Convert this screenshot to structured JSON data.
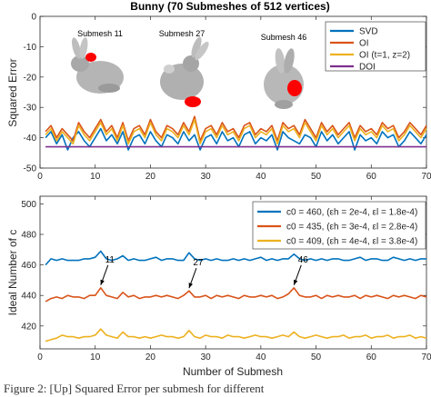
{
  "figure": {
    "caption": "Figure 2: [Up] Squared Error per submesh for different"
  },
  "chart_data": [
    {
      "type": "line",
      "title": "Bunny (70 Submeshes of 512 vertices)",
      "xlabel": "",
      "ylabel": "Squared  Error",
      "xlim": [
        0,
        70
      ],
      "ylim": [
        -50,
        0
      ],
      "xticks": [
        0,
        10,
        20,
        30,
        40,
        50,
        60,
        70
      ],
      "yticks": [
        0,
        -10,
        -20,
        -30,
        -40,
        -50
      ],
      "legend_position": "top-right",
      "x": [
        1,
        2,
        3,
        4,
        5,
        6,
        7,
        8,
        9,
        10,
        11,
        12,
        13,
        14,
        15,
        16,
        17,
        18,
        19,
        20,
        21,
        22,
        23,
        24,
        25,
        26,
        27,
        28,
        29,
        30,
        31,
        32,
        33,
        34,
        35,
        36,
        37,
        38,
        39,
        40,
        41,
        42,
        43,
        44,
        45,
        46,
        47,
        48,
        49,
        50,
        51,
        52,
        53,
        54,
        55,
        56,
        57,
        58,
        59,
        60,
        61,
        62,
        63,
        64,
        65,
        66,
        67,
        68,
        69,
        70
      ],
      "series": [
        {
          "name": "SVD",
          "color": "#0072BD",
          "values": [
            -40,
            -38,
            -42,
            -39,
            -44,
            -40,
            -38,
            -41,
            -43,
            -40,
            -37,
            -41,
            -39,
            -42,
            -38,
            -44,
            -40,
            -39,
            -42,
            -38,
            -41,
            -43,
            -39,
            -40,
            -42,
            -38,
            -41,
            -39,
            -44,
            -40,
            -39,
            -42,
            -38,
            -41,
            -40,
            -43,
            -39,
            -38,
            -42,
            -40,
            -41,
            -39,
            -44,
            -38,
            -40,
            -41,
            -42,
            -39,
            -40,
            -43,
            -38,
            -41,
            -39,
            -42,
            -40,
            -38,
            -44,
            -39,
            -41,
            -40,
            -42,
            -38,
            -40,
            -39,
            -43,
            -41,
            -38,
            -40,
            -42,
            -39
          ]
        },
        {
          "name": "OI",
          "color": "#D95319",
          "values": [
            -38,
            -36,
            -40,
            -37,
            -39,
            -41,
            -35,
            -38,
            -40,
            -37,
            -34,
            -38,
            -36,
            -40,
            -35,
            -41,
            -37,
            -36,
            -39,
            -34,
            -38,
            -40,
            -36,
            -37,
            -39,
            -35,
            -38,
            -33,
            -41,
            -37,
            -36,
            -39,
            -35,
            -38,
            -37,
            -40,
            -36,
            -35,
            -39,
            -37,
            -38,
            -36,
            -41,
            -35,
            -37,
            -36,
            -39,
            -34,
            -37,
            -40,
            -35,
            -38,
            -36,
            -39,
            -37,
            -35,
            -40,
            -36,
            -38,
            -37,
            -39,
            -35,
            -37,
            -36,
            -40,
            -38,
            -35,
            -37,
            -39,
            -36
          ]
        },
        {
          "name": "OI (t=1, z=2)",
          "color": "#EDB120",
          "values": [
            -39,
            -37,
            -41,
            -38,
            -40,
            -42,
            -36,
            -39,
            -41,
            -38,
            -35,
            -39,
            -37,
            -41,
            -36,
            -42,
            -38,
            -37,
            -40,
            -35,
            -39,
            -41,
            -37,
            -38,
            -40,
            -36,
            -39,
            -34,
            -42,
            -38,
            -37,
            -40,
            -36,
            -39,
            -38,
            -41,
            -37,
            -36,
            -40,
            -38,
            -39,
            -37,
            -42,
            -36,
            -38,
            -37,
            -40,
            -35,
            -38,
            -41,
            -36,
            -39,
            -37,
            -40,
            -38,
            -36,
            -41,
            -37,
            -39,
            -38,
            -40,
            -36,
            -38,
            -37,
            -41,
            -39,
            -36,
            -38,
            -40,
            -37
          ]
        },
        {
          "name": "DOI",
          "color": "#7E2F8E",
          "values": [
            -43,
            -43,
            -43,
            -43,
            -43,
            -43,
            -43,
            -43,
            -43,
            -43,
            -43,
            -43,
            -43,
            -43,
            -43,
            -43,
            -43,
            -43,
            -43,
            -43,
            -43,
            -43,
            -43,
            -43,
            -43,
            -43,
            -43,
            -43,
            -43,
            -43,
            -43,
            -43,
            -43,
            -43,
            -43,
            -43,
            -43,
            -43,
            -43,
            -43,
            -43,
            -43,
            -43,
            -43,
            -43,
            -43,
            -43,
            -43,
            -43,
            -43,
            -43,
            -43,
            -43,
            -43,
            -43,
            -43,
            -43,
            -43,
            -43,
            -43,
            -43,
            -43,
            -43,
            -43,
            -43,
            -43,
            -43,
            -43,
            -43,
            -43
          ]
        }
      ],
      "insets": [
        {
          "label": "Submesh 11",
          "x": 11
        },
        {
          "label": "Submesh 27",
          "x": 27
        },
        {
          "label": "Submesh 46",
          "x": 46
        }
      ]
    },
    {
      "type": "line",
      "title": "",
      "xlabel": "Number of Submesh",
      "ylabel": "Ideal Number of c",
      "xlim": [
        0,
        70
      ],
      "ylim": [
        405,
        505
      ],
      "xticks": [
        0,
        10,
        20,
        30,
        40,
        50,
        60,
        70
      ],
      "yticks": [
        420,
        440,
        460,
        480,
        500
      ],
      "legend_position": "top-right",
      "x": [
        1,
        2,
        3,
        4,
        5,
        6,
        7,
        8,
        9,
        10,
        11,
        12,
        13,
        14,
        15,
        16,
        17,
        18,
        19,
        20,
        21,
        22,
        23,
        24,
        25,
        26,
        27,
        28,
        29,
        30,
        31,
        32,
        33,
        34,
        35,
        36,
        37,
        38,
        39,
        40,
        41,
        42,
        43,
        44,
        45,
        46,
        47,
        48,
        49,
        50,
        51,
        52,
        53,
        54,
        55,
        56,
        57,
        58,
        59,
        60,
        61,
        62,
        63,
        64,
        65,
        66,
        67,
        68,
        69,
        70
      ],
      "series": [
        {
          "name": "c0 = 460, (εh = 2e-4, εl = 1.8e-4)",
          "color": "#0072BD",
          "values": [
            460,
            464,
            463,
            464,
            463,
            463,
            463,
            464,
            464,
            465,
            469,
            464,
            463,
            464,
            466,
            463,
            464,
            463,
            463,
            464,
            465,
            463,
            464,
            464,
            463,
            463,
            468,
            464,
            463,
            464,
            463,
            464,
            463,
            463,
            464,
            463,
            464,
            463,
            464,
            465,
            463,
            464,
            463,
            464,
            464,
            467,
            464,
            463,
            464,
            463,
            464,
            463,
            464,
            464,
            463,
            463,
            464,
            465,
            463,
            464,
            464,
            463,
            463,
            465,
            464,
            463,
            464,
            463,
            464,
            464
          ]
        },
        {
          "name": "c0 = 435, (εh = 3e-4, εl = 2.8e-4)",
          "color": "#D95319",
          "values": [
            436,
            438,
            439,
            438,
            440,
            439,
            439,
            438,
            440,
            440,
            445,
            440,
            439,
            438,
            442,
            439,
            440,
            438,
            439,
            439,
            440,
            439,
            440,
            439,
            438,
            440,
            443,
            439,
            439,
            440,
            438,
            440,
            439,
            440,
            439,
            438,
            440,
            439,
            439,
            440,
            439,
            440,
            438,
            439,
            441,
            445,
            440,
            439,
            439,
            440,
            438,
            440,
            439,
            440,
            439,
            439,
            440,
            438,
            440,
            439,
            440,
            439,
            438,
            440,
            439,
            440,
            439,
            438,
            440,
            439
          ]
        },
        {
          "name": "c0 = 409, (εh = 4e-4, εl = 3.8e-4)",
          "color": "#EDB120",
          "values": [
            410,
            411,
            412,
            414,
            413,
            413,
            412,
            413,
            413,
            414,
            418,
            414,
            413,
            412,
            416,
            413,
            413,
            412,
            413,
            412,
            413,
            414,
            413,
            413,
            412,
            413,
            417,
            413,
            412,
            414,
            413,
            413,
            412,
            414,
            413,
            413,
            412,
            413,
            414,
            413,
            413,
            412,
            413,
            414,
            413,
            416,
            413,
            412,
            413,
            414,
            413,
            412,
            413,
            413,
            414,
            412,
            413,
            413,
            414,
            412,
            413,
            413,
            414,
            412,
            413,
            413,
            414,
            412,
            413,
            412
          ]
        }
      ],
      "annotations": [
        {
          "text": "11",
          "x": 11
        },
        {
          "text": "27",
          "x": 27
        },
        {
          "text": "46",
          "x": 46
        }
      ]
    }
  ]
}
